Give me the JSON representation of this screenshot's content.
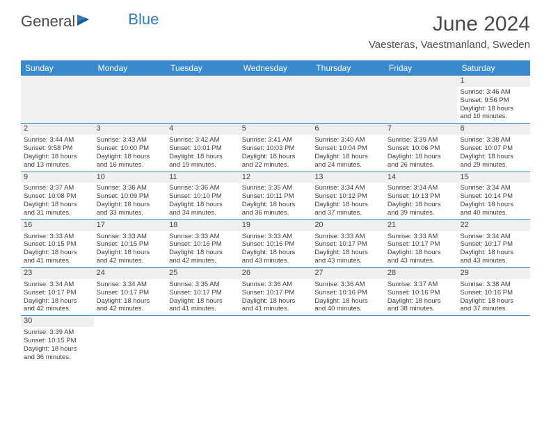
{
  "header": {
    "logo_part1": "General",
    "logo_part2": "Blue",
    "month_title": "June 2024",
    "location": "Vaesteras, Vaestmanland, Sweden"
  },
  "colors": {
    "header_bar": "#3989cc",
    "row_border": "#3989cc",
    "daynum_bg": "#efefef",
    "logo_blue": "#2e7cc4"
  },
  "weekdays": [
    "Sunday",
    "Monday",
    "Tuesday",
    "Wednesday",
    "Thursday",
    "Friday",
    "Saturday"
  ],
  "weeks": [
    [
      {
        "empty": true
      },
      {
        "empty": true
      },
      {
        "empty": true
      },
      {
        "empty": true
      },
      {
        "empty": true
      },
      {
        "empty": true
      },
      {
        "n": "1",
        "sr": "Sunrise: 3:46 AM",
        "ss": "Sunset: 9:56 PM",
        "d1": "Daylight: 18 hours",
        "d2": "and 10 minutes."
      }
    ],
    [
      {
        "n": "2",
        "sr": "Sunrise: 3:44 AM",
        "ss": "Sunset: 9:58 PM",
        "d1": "Daylight: 18 hours",
        "d2": "and 13 minutes."
      },
      {
        "n": "3",
        "sr": "Sunrise: 3:43 AM",
        "ss": "Sunset: 10:00 PM",
        "d1": "Daylight: 18 hours",
        "d2": "and 16 minutes."
      },
      {
        "n": "4",
        "sr": "Sunrise: 3:42 AM",
        "ss": "Sunset: 10:01 PM",
        "d1": "Daylight: 18 hours",
        "d2": "and 19 minutes."
      },
      {
        "n": "5",
        "sr": "Sunrise: 3:41 AM",
        "ss": "Sunset: 10:03 PM",
        "d1": "Daylight: 18 hours",
        "d2": "and 22 minutes."
      },
      {
        "n": "6",
        "sr": "Sunrise: 3:40 AM",
        "ss": "Sunset: 10:04 PM",
        "d1": "Daylight: 18 hours",
        "d2": "and 24 minutes."
      },
      {
        "n": "7",
        "sr": "Sunrise: 3:39 AM",
        "ss": "Sunset: 10:06 PM",
        "d1": "Daylight: 18 hours",
        "d2": "and 26 minutes."
      },
      {
        "n": "8",
        "sr": "Sunrise: 3:38 AM",
        "ss": "Sunset: 10:07 PM",
        "d1": "Daylight: 18 hours",
        "d2": "and 29 minutes."
      }
    ],
    [
      {
        "n": "9",
        "sr": "Sunrise: 3:37 AM",
        "ss": "Sunset: 10:08 PM",
        "d1": "Daylight: 18 hours",
        "d2": "and 31 minutes."
      },
      {
        "n": "10",
        "sr": "Sunrise: 3:36 AM",
        "ss": "Sunset: 10:09 PM",
        "d1": "Daylight: 18 hours",
        "d2": "and 33 minutes."
      },
      {
        "n": "11",
        "sr": "Sunrise: 3:36 AM",
        "ss": "Sunset: 10:10 PM",
        "d1": "Daylight: 18 hours",
        "d2": "and 34 minutes."
      },
      {
        "n": "12",
        "sr": "Sunrise: 3:35 AM",
        "ss": "Sunset: 10:11 PM",
        "d1": "Daylight: 18 hours",
        "d2": "and 36 minutes."
      },
      {
        "n": "13",
        "sr": "Sunrise: 3:34 AM",
        "ss": "Sunset: 10:12 PM",
        "d1": "Daylight: 18 hours",
        "d2": "and 37 minutes."
      },
      {
        "n": "14",
        "sr": "Sunrise: 3:34 AM",
        "ss": "Sunset: 10:13 PM",
        "d1": "Daylight: 18 hours",
        "d2": "and 39 minutes."
      },
      {
        "n": "15",
        "sr": "Sunrise: 3:34 AM",
        "ss": "Sunset: 10:14 PM",
        "d1": "Daylight: 18 hours",
        "d2": "and 40 minutes."
      }
    ],
    [
      {
        "n": "16",
        "sr": "Sunrise: 3:33 AM",
        "ss": "Sunset: 10:15 PM",
        "d1": "Daylight: 18 hours",
        "d2": "and 41 minutes."
      },
      {
        "n": "17",
        "sr": "Sunrise: 3:33 AM",
        "ss": "Sunset: 10:15 PM",
        "d1": "Daylight: 18 hours",
        "d2": "and 42 minutes."
      },
      {
        "n": "18",
        "sr": "Sunrise: 3:33 AM",
        "ss": "Sunset: 10:16 PM",
        "d1": "Daylight: 18 hours",
        "d2": "and 42 minutes."
      },
      {
        "n": "19",
        "sr": "Sunrise: 3:33 AM",
        "ss": "Sunset: 10:16 PM",
        "d1": "Daylight: 18 hours",
        "d2": "and 43 minutes."
      },
      {
        "n": "20",
        "sr": "Sunrise: 3:33 AM",
        "ss": "Sunset: 10:17 PM",
        "d1": "Daylight: 18 hours",
        "d2": "and 43 minutes."
      },
      {
        "n": "21",
        "sr": "Sunrise: 3:33 AM",
        "ss": "Sunset: 10:17 PM",
        "d1": "Daylight: 18 hours",
        "d2": "and 43 minutes."
      },
      {
        "n": "22",
        "sr": "Sunrise: 3:34 AM",
        "ss": "Sunset: 10:17 PM",
        "d1": "Daylight: 18 hours",
        "d2": "and 43 minutes."
      }
    ],
    [
      {
        "n": "23",
        "sr": "Sunrise: 3:34 AM",
        "ss": "Sunset: 10:17 PM",
        "d1": "Daylight: 18 hours",
        "d2": "and 42 minutes."
      },
      {
        "n": "24",
        "sr": "Sunrise: 3:34 AM",
        "ss": "Sunset: 10:17 PM",
        "d1": "Daylight: 18 hours",
        "d2": "and 42 minutes."
      },
      {
        "n": "25",
        "sr": "Sunrise: 3:35 AM",
        "ss": "Sunset: 10:17 PM",
        "d1": "Daylight: 18 hours",
        "d2": "and 41 minutes."
      },
      {
        "n": "26",
        "sr": "Sunrise: 3:36 AM",
        "ss": "Sunset: 10:17 PM",
        "d1": "Daylight: 18 hours",
        "d2": "and 41 minutes."
      },
      {
        "n": "27",
        "sr": "Sunrise: 3:36 AM",
        "ss": "Sunset: 10:16 PM",
        "d1": "Daylight: 18 hours",
        "d2": "and 40 minutes."
      },
      {
        "n": "28",
        "sr": "Sunrise: 3:37 AM",
        "ss": "Sunset: 10:16 PM",
        "d1": "Daylight: 18 hours",
        "d2": "and 38 minutes."
      },
      {
        "n": "29",
        "sr": "Sunrise: 3:38 AM",
        "ss": "Sunset: 10:16 PM",
        "d1": "Daylight: 18 hours",
        "d2": "and 37 minutes."
      }
    ],
    [
      {
        "n": "30",
        "sr": "Sunrise: 3:39 AM",
        "ss": "Sunset: 10:15 PM",
        "d1": "Daylight: 18 hours",
        "d2": "and 36 minutes."
      },
      {
        "empty": true
      },
      {
        "empty": true
      },
      {
        "empty": true
      },
      {
        "empty": true
      },
      {
        "empty": true
      },
      {
        "empty": true
      }
    ]
  ]
}
